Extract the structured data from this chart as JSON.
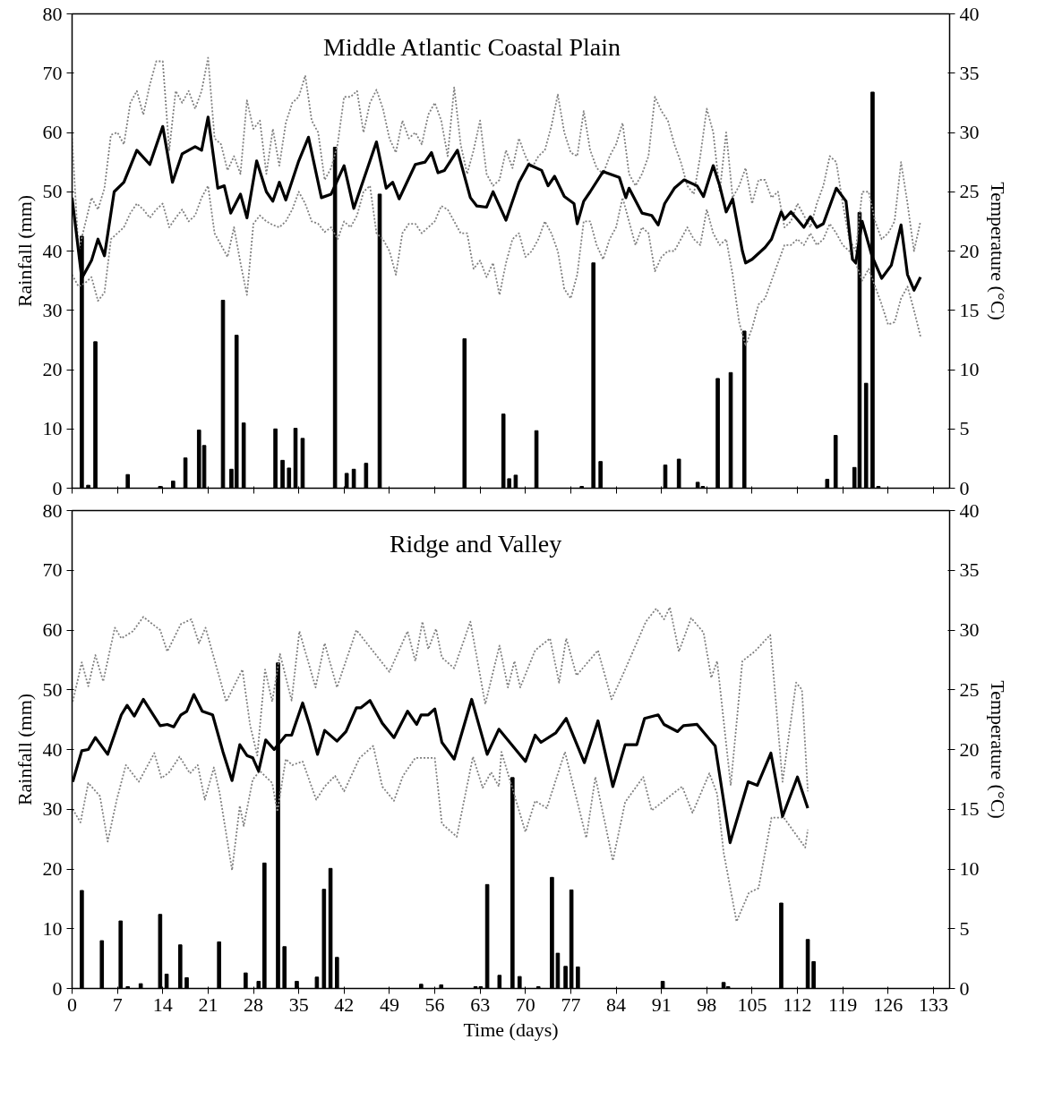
{
  "chart_data": [
    {
      "type": "bar",
      "title": "Middle Atlantic  Coastal Plain",
      "ylabel": "Rainfall (mm)",
      "y2label": "Temperature (°C)",
      "xlim": [
        0,
        135.5
      ],
      "xticks": [
        0,
        7,
        14,
        21,
        28,
        35,
        42,
        49,
        56,
        63,
        70,
        77,
        84,
        91,
        98,
        105,
        112,
        119,
        126,
        133
      ],
      "ylim": [
        0,
        80
      ],
      "yticks": [
        0,
        10,
        20,
        30,
        40,
        50,
        60,
        70,
        80
      ],
      "y2lim": [
        0,
        40
      ],
      "y2ticks": [
        0,
        5,
        10,
        15,
        20,
        25,
        30,
        35,
        40
      ],
      "tick_labels": "y",
      "grid": false,
      "series": [
        {
          "color": "#000000",
          "x": [
            1.5,
            2.5,
            3.6,
            8.6,
            13.6,
            15.6,
            17.5,
            19.6,
            20.4,
            23.3,
            24.6,
            25.4,
            26.5,
            31.4,
            32.5,
            33.5,
            34.5,
            35.6,
            40.6,
            42.4,
            43.5,
            45.4,
            47.5,
            60.6,
            66.6,
            67.5,
            68.5,
            71.7,
            78.7,
            80.5,
            81.6,
            91.6,
            93.7,
            96.6,
            97.4,
            99.7,
            101.7,
            103.8,
            116.6,
            117.9,
            120.8,
            121.6,
            122.6,
            123.6,
            124.5
          ],
          "values": [
            42.5,
            0.5,
            24.7,
            2.3,
            0.3,
            1.2,
            5.1,
            9.8,
            7.2,
            31.7,
            3.2,
            25.8,
            11,
            10,
            4.7,
            3.4,
            10.1,
            8.4,
            57.5,
            2.5,
            3.2,
            4.2,
            49.6,
            25.2,
            12.5,
            1.6,
            2.2,
            9.7,
            0.3,
            38,
            4.5,
            3.9,
            4.9,
            1,
            0.3,
            18.5,
            19.5,
            26.5,
            1.5,
            8.9,
            3.5,
            46.5,
            17.7,
            66.8,
            0.3
          ]
        },
        {
          "type": "line",
          "axis": "y2",
          "color": "#808080",
          "line_style": "dotted",
          "x": [
            0,
            1,
            3,
            4,
            5,
            6,
            7,
            8,
            9,
            10,
            11,
            12,
            13,
            14,
            15,
            16,
            17,
            18,
            19,
            20,
            21,
            22,
            23,
            24,
            25,
            26,
            27,
            28,
            29,
            30,
            31,
            32,
            33,
            34,
            35,
            36,
            37,
            38,
            39,
            40,
            41,
            42,
            43,
            44,
            45,
            46,
            47,
            48,
            49,
            50,
            51,
            52,
            53,
            54,
            55,
            56,
            57,
            58,
            59,
            60,
            61,
            62,
            63,
            64,
            65,
            66,
            67,
            68,
            69,
            70,
            71,
            72,
            73,
            74,
            75,
            76,
            77,
            78,
            79,
            80,
            81,
            82,
            83,
            84,
            85,
            86,
            87,
            88,
            89,
            90,
            91,
            92,
            93,
            94,
            95,
            96,
            97,
            98,
            99,
            100,
            101,
            102,
            103,
            104,
            105,
            106,
            107,
            108,
            109,
            110,
            111,
            112,
            113,
            114,
            115,
            116,
            117,
            118,
            119,
            120,
            121,
            122,
            123,
            124,
            125,
            126,
            127,
            128,
            129,
            130,
            131
          ],
          "values": [
            29.5,
            20,
            24.5,
            23.5,
            25.3,
            29.8,
            30,
            29,
            32.5,
            33.5,
            31.5,
            34,
            36,
            36,
            28.5,
            33.5,
            32.5,
            33.5,
            32,
            33.5,
            36.3,
            29.5,
            29,
            26.8,
            28,
            26.5,
            32.7,
            30.3,
            31,
            26.5,
            30.3,
            27.2,
            30.8,
            32.5,
            33,
            34.8,
            31,
            30,
            26,
            27,
            29,
            33,
            33,
            33.5,
            30,
            32.5,
            33.6,
            32,
            29.5,
            28.3,
            31,
            29.5,
            30,
            29,
            31.5,
            32.5,
            31,
            28,
            33.8,
            29,
            26.5,
            28.5,
            31,
            26.5,
            25.5,
            26,
            28.5,
            27,
            29.5,
            28,
            27,
            28,
            28.5,
            30.5,
            33.2,
            30,
            28.3,
            28,
            31.8,
            28.5,
            27,
            26.5,
            28,
            29,
            30.8,
            26.5,
            25.5,
            26.5,
            28,
            33,
            31.8,
            31,
            29,
            27.5,
            25.5,
            24.8,
            28,
            32,
            30,
            25,
            30,
            24.5,
            25.5,
            27,
            24,
            26,
            26,
            24.5,
            25,
            22,
            22.5,
            24,
            23,
            22,
            24,
            25.5,
            28,
            27.5,
            24,
            21,
            20,
            25,
            25,
            22.5,
            21,
            21.5,
            22.5,
            27.5,
            24,
            20,
            22.5
          ]
        },
        {
          "type": "line",
          "axis": "y2",
          "color": "#808080",
          "line_style": "dotted",
          "x": [
            0,
            1,
            2,
            3,
            4,
            5,
            6,
            7,
            8,
            9,
            10,
            11,
            12,
            13,
            14,
            15,
            16,
            17,
            18,
            19,
            20,
            21,
            22,
            23,
            24,
            25,
            26,
            27,
            28,
            29,
            30,
            31,
            32,
            33,
            34,
            35,
            36,
            37,
            38,
            39,
            40,
            41,
            42,
            43,
            44,
            45,
            46,
            47,
            48,
            49,
            50,
            51,
            52,
            53,
            54,
            55,
            56,
            57,
            58,
            59,
            60,
            61,
            62,
            63,
            64,
            65,
            66,
            67,
            68,
            69,
            70,
            71,
            72,
            73,
            74,
            75,
            76,
            77,
            78,
            79,
            80,
            81,
            82,
            83,
            84,
            85,
            86,
            87,
            88,
            89,
            90,
            91,
            92,
            93,
            94,
            95,
            96,
            97,
            98,
            99,
            100,
            101,
            102,
            103,
            104,
            105,
            106,
            107,
            108,
            109,
            110,
            111,
            112,
            113,
            114,
            115,
            116,
            117,
            118,
            119,
            120,
            121,
            122,
            123,
            124,
            125,
            126,
            127,
            128,
            129,
            130,
            131
          ],
          "values": [
            18,
            17,
            17.3,
            17.8,
            15.8,
            16.5,
            21,
            21.5,
            22,
            23.2,
            24,
            23.5,
            22.8,
            23.5,
            24,
            22,
            22.8,
            23.5,
            22.5,
            23,
            24.5,
            25.5,
            21.5,
            20.5,
            19.5,
            22,
            19,
            16.3,
            22.3,
            23,
            22.5,
            22.2,
            22,
            22.5,
            23.5,
            25,
            24,
            22.5,
            22.3,
            21.6,
            22,
            21,
            22.5,
            22,
            23,
            25,
            25.5,
            21.5,
            21,
            20,
            18,
            21.5,
            22.3,
            22.3,
            21.5,
            22,
            22.5,
            23.8,
            23.5,
            22.5,
            21.5,
            21.5,
            18.5,
            19.2,
            17.8,
            19,
            16.3,
            19,
            21,
            21.5,
            19.5,
            20,
            21,
            22.5,
            21.5,
            20,
            16.8,
            16,
            18,
            22.5,
            22.5,
            20.5,
            19.3,
            21,
            22,
            24.5,
            22.5,
            20.5,
            22,
            21.5,
            18.3,
            19.5,
            20,
            20,
            21,
            22,
            21,
            20.5,
            23.5,
            21.5,
            20.5,
            21,
            18,
            14,
            12,
            13.5,
            15.5,
            16,
            17.5,
            19,
            20.5,
            20.5,
            21,
            20.5,
            21.5,
            20.5,
            21,
            22.3,
            21.5,
            20.5,
            20,
            19,
            17.5,
            18.5,
            17,
            15.5,
            13.8,
            14,
            16,
            17,
            15,
            12.8
          ]
        },
        {
          "type": "line",
          "axis": "y2",
          "color": "#000000",
          "line_style": "solid",
          "x": [
            0,
            1.5,
            3,
            4,
            5,
            6.5,
            8,
            10,
            12,
            14,
            15.5,
            17,
            19,
            20,
            21,
            22.5,
            23.5,
            24.5,
            26,
            27,
            28.5,
            30,
            31,
            32,
            33,
            35,
            36.5,
            38.5,
            40,
            42,
            43.5,
            47,
            48.5,
            49.5,
            50.5,
            53,
            54.5,
            55.5,
            56.5,
            57.5,
            59.5,
            61.5,
            62.5,
            64,
            65,
            66,
            67,
            69,
            70.5,
            72.5,
            73.5,
            74.5,
            76,
            77.5,
            78,
            79,
            80,
            82,
            84.5,
            85.5,
            86,
            88,
            89.5,
            90.5,
            91.5,
            93,
            94.5,
            96.5,
            97.5,
            99,
            100,
            101,
            102,
            103.5,
            104,
            105,
            107,
            108,
            109.5,
            110,
            111,
            113,
            114,
            115,
            116,
            118,
            119.5,
            120.5,
            121,
            122,
            123.5,
            125,
            126.5,
            128,
            129,
            130,
            131
          ],
          "values": [
            24.5,
            17.7,
            19.2,
            21,
            19.6,
            25,
            25.8,
            28.5,
            27.3,
            30.5,
            25.8,
            28.2,
            28.8,
            28.5,
            31.3,
            25.3,
            25.5,
            23.2,
            24.8,
            22.8,
            27.6,
            25,
            24.2,
            25.8,
            24.3,
            27.6,
            29.6,
            24.5,
            24.8,
            27.2,
            23.6,
            29.2,
            25.3,
            25.8,
            24.4,
            27.3,
            27.5,
            28.3,
            26.6,
            26.8,
            28.5,
            24.5,
            23.8,
            23.7,
            25,
            23.8,
            22.6,
            25.8,
            27.3,
            26.8,
            25.5,
            26.3,
            24.6,
            24,
            22.3,
            24.2,
            25,
            26.7,
            26.2,
            24.5,
            25.3,
            23.2,
            23,
            22.2,
            24,
            25.3,
            26,
            25.5,
            24.6,
            27.2,
            25.5,
            23.3,
            24.4,
            20,
            19,
            19.3,
            20.3,
            21,
            23.3,
            22.7,
            23.3,
            22,
            22.9,
            22,
            22.3,
            25.3,
            24.2,
            19.3,
            19,
            22.5,
            19.6,
            17.7,
            18.8,
            22.2,
            18,
            16.7,
            17.8
          ]
        }
      ]
    },
    {
      "type": "bar",
      "title": "Ridge and Valley",
      "xlabel": "Time (days)",
      "ylabel": "Rainfall (mm)",
      "y2label": "Temperature (°C)",
      "xlim": [
        0,
        135.5
      ],
      "xticks": [
        0,
        7,
        14,
        21,
        28,
        35,
        42,
        49,
        56,
        63,
        70,
        77,
        84,
        91,
        98,
        105,
        112,
        119,
        126,
        133
      ],
      "ylim": [
        0,
        80
      ],
      "yticks": [
        0,
        10,
        20,
        30,
        40,
        50,
        60,
        70,
        80
      ],
      "y2lim": [
        0,
        40
      ],
      "y2ticks": [
        0,
        5,
        10,
        15,
        20,
        25,
        30,
        35,
        40
      ],
      "grid": false,
      "series": [
        {
          "color": "#000000",
          "x": [
            1.5,
            4.6,
            7.5,
            8.6,
            10.6,
            13.6,
            14.6,
            16.7,
            17.7,
            22.7,
            26.8,
            28.8,
            29.7,
            31.8,
            32.8,
            34.7,
            37.8,
            38.9,
            39.9,
            40.9,
            53.9,
            57,
            62.3,
            63.1,
            64.1,
            66,
            68,
            69.1,
            72,
            74.1,
            75,
            76.2,
            77.1,
            78.1,
            91.2,
            100.6,
            101.3,
            109.5,
            113.6,
            114.5
          ],
          "values": [
            16.4,
            8,
            11.3,
            0.3,
            0.8,
            12.4,
            2.4,
            7.3,
            1.8,
            7.8,
            2.6,
            1.2,
            21,
            54.5,
            7,
            1.2,
            1.9,
            16.6,
            20.1,
            5.2,
            0.7,
            0.6,
            0.3,
            0.3,
            17.4,
            2.2,
            35.3,
            2,
            0.3,
            18.6,
            5.9,
            3.7,
            16.5,
            3.6,
            1.2,
            1,
            0.3,
            14.3,
            8.2,
            4.5
          ]
        },
        {
          "type": "line",
          "axis": "y2",
          "color": "#808080",
          "line_style": "dotted",
          "x": [
            0.1,
            1.5,
            2.5,
            3.6,
            4.8,
            6.6,
            7.6,
            9.4,
            11,
            13.6,
            14.7,
            16.8,
            18.4,
            19.6,
            20.6,
            23.8,
            26.3,
            27.5,
            28.6,
            29.8,
            30.9,
            32.1,
            33.9,
            35.1,
            37.6,
            39,
            40.9,
            43.9,
            49,
            51.8,
            53,
            54.1,
            55,
            56.2,
            57.1,
            59,
            61.5,
            63.8,
            66,
            67.3,
            68.3,
            69.2,
            71.5,
            73.8,
            75.2,
            76.3,
            77.9,
            81.2,
            83.3,
            85.4,
            88.6,
            90.2,
            91.4,
            92.3,
            93.7,
            95.6,
            97.5,
            98.7,
            99.6,
            101.7,
            103.5,
            105.4,
            107.8,
            109.7,
            111.8,
            112.7,
            113.6
          ],
          "values": [
            24,
            27.3,
            25.3,
            27.9,
            25.7,
            30.2,
            29.3,
            29.9,
            31.1,
            30,
            28.2,
            30.5,
            30.9,
            28.9,
            30.2,
            24,
            26.7,
            22,
            19.5,
            26.7,
            24,
            28,
            24.1,
            29.9,
            25.2,
            28.9,
            25.2,
            30,
            26.5,
            29.9,
            27.4,
            30.7,
            28.4,
            30.1,
            27.7,
            26.8,
            30.7,
            23.8,
            28.7,
            25.2,
            27.4,
            25.2,
            28.3,
            29.3,
            25.6,
            29.3,
            26.2,
            28.3,
            24.2,
            26.7,
            30.7,
            31.8,
            30.9,
            31.9,
            28.2,
            31,
            29.8,
            26,
            27.4,
            17,
            27.4,
            28.2,
            29.6,
            17.3,
            25.6,
            25,
            16.5
          ]
        },
        {
          "type": "line",
          "axis": "y2",
          "color": "#808080",
          "line_style": "dotted",
          "x": [
            0.1,
            1.3,
            2.5,
            4.3,
            5.5,
            6.9,
            8.3,
            10.3,
            12.7,
            13.8,
            15,
            16.6,
            18.2,
            19.4,
            20.5,
            21.9,
            22.8,
            24.7,
            25.9,
            26.5,
            27.9,
            29,
            30.9,
            31.7,
            33,
            34,
            35.6,
            37.7,
            39,
            40.6,
            42,
            44.4,
            46.5,
            47.9,
            49.7,
            51.1,
            53,
            56,
            57.1,
            59.4,
            61.9,
            63.4,
            64.7,
            65.9,
            66.3,
            70,
            71.5,
            73.3,
            76.1,
            79.4,
            80.8,
            83.5,
            85.4,
            88.2,
            89.5,
            94.2,
            95.8,
            98.4,
            99.6,
            100.6,
            102.6,
            104.5,
            106,
            108,
            109.9,
            113.2,
            113.6
          ],
          "values": [
            15,
            13.9,
            17.2,
            16.1,
            12.3,
            15.8,
            18.7,
            17.3,
            19.7,
            17.6,
            18.1,
            19.4,
            18,
            18.7,
            15.8,
            18.5,
            16.3,
            9.9,
            15.3,
            13.6,
            17.5,
            18.2,
            17.2,
            14.8,
            19.2,
            18.7,
            19,
            15.8,
            16.9,
            17.8,
            16.5,
            19.3,
            20.3,
            16.9,
            15.7,
            17.8,
            19.3,
            19.3,
            13.8,
            12.7,
            19.4,
            16.8,
            18.1,
            16.9,
            19.8,
            13.1,
            15.7,
            15.1,
            19.8,
            12.6,
            17.7,
            10.7,
            15.6,
            17.7,
            14.9,
            16.9,
            14.7,
            18,
            16.3,
            11.4,
            5.6,
            8,
            8.4,
            14.3,
            14.3,
            11.8,
            13.3
          ]
        },
        {
          "type": "line",
          "axis": "y2",
          "color": "#000000",
          "line_style": "solid",
          "x": [
            0.1,
            1.5,
            2.5,
            3.6,
            5.5,
            7.6,
            8.5,
            9.6,
            11,
            13.6,
            14.7,
            15.7,
            16.8,
            17.7,
            18.8,
            20.1,
            21.7,
            23.3,
            24.7,
            25.9,
            27,
            27.9,
            28.8,
            29.9,
            31.2,
            33,
            33.9,
            35.6,
            36.7,
            37.9,
            39,
            40.9,
            42.3,
            43.9,
            44.6,
            46,
            47.9,
            49.7,
            51.8,
            53.2,
            53.9,
            55,
            56,
            57.1,
            59,
            61.7,
            64.1,
            65.9,
            70,
            71.5,
            72.4,
            74.7,
            76.3,
            79.1,
            81.2,
            83.5,
            85.4,
            87.2,
            88.4,
            90.5,
            91.4,
            93.5,
            94.4,
            96.5,
            99.3,
            101.6,
            104.4,
            105.8,
            107.9,
            109.7,
            112,
            113.6
          ],
          "values": [
            17.3,
            19.9,
            20,
            21,
            19.6,
            22.9,
            23.7,
            22.8,
            24.2,
            22,
            22.1,
            21.9,
            22.9,
            23.2,
            24.6,
            23.2,
            22.9,
            19.8,
            17.4,
            20.4,
            19.5,
            19.3,
            18.2,
            20.8,
            20,
            21.2,
            21.2,
            23.9,
            22,
            19.6,
            21.6,
            20.7,
            21.5,
            23.5,
            23.5,
            24.1,
            22.2,
            21,
            23.2,
            22.1,
            22.9,
            22.9,
            23.4,
            20.6,
            19.2,
            24.2,
            19.6,
            21.7,
            19,
            21.2,
            20.6,
            21.4,
            22.6,
            18.9,
            22.4,
            16.9,
            20.4,
            20.4,
            22.6,
            22.9,
            22.1,
            21.5,
            22,
            22.1,
            20.3,
            12.2,
            17.3,
            17,
            19.7,
            14.4,
            17.7,
            15.1
          ]
        }
      ]
    }
  ]
}
